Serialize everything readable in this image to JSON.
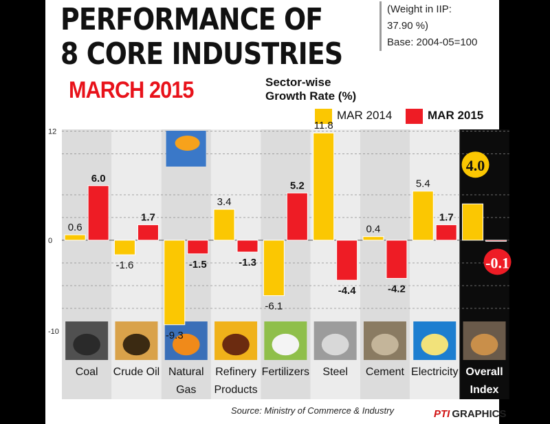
{
  "header": {
    "title_line1": "PERFORMANCE OF",
    "title_line2": "8 CORE INDUSTRIES",
    "month": "MARCH 2015"
  },
  "note": {
    "line1": "(Weight in IIP:",
    "line2": "37.90 %)",
    "line3": "Base: 2004-05=100"
  },
  "source": "Source: Ministry of Commerce & Industry",
  "footer": {
    "logo_text": "PTI",
    "label": "GRAPHICS"
  },
  "colors": {
    "mar2014": "#fbc702",
    "mar2015": "#ee1c25",
    "panel": "#dcdcdc",
    "overall_panel": "#0c0c0c"
  },
  "chart_data": {
    "type": "bar",
    "title": "Sector-wise Growth Rate (%)",
    "title_lines": [
      "Sector-wise",
      "Growth Rate (%)"
    ],
    "categories": [
      "Coal",
      "Crude Oil",
      "Natural Gas",
      "Refinery Products",
      "Fertilizers",
      "Steel",
      "Cement",
      "Electricity",
      "Overall Index"
    ],
    "category_labels": [
      [
        "Coal"
      ],
      [
        "Crude Oil"
      ],
      [
        "Natural",
        "Gas"
      ],
      [
        "Refinery",
        "Products"
      ],
      [
        "Fertilizers"
      ],
      [
        "Steel"
      ],
      [
        "Cement"
      ],
      [
        "Electricity"
      ],
      [
        "Overall",
        "Index"
      ]
    ],
    "series": [
      {
        "name": "MAR 2014",
        "values": [
          0.6,
          -1.6,
          -9.3,
          3.4,
          -6.1,
          11.8,
          0.4,
          5.4,
          4.0
        ],
        "labels": [
          "0.6",
          "-1.6",
          "-9.3",
          "3.4",
          "-6.1",
          "11.8",
          "0.4",
          "5.4",
          "4.0"
        ]
      },
      {
        "name": "MAR 2015",
        "values": [
          6.0,
          1.7,
          -1.5,
          -1.3,
          5.2,
          -4.4,
          -4.2,
          1.7,
          -0.1
        ],
        "labels": [
          "6.0",
          "1.7",
          "-1.5",
          "-1.3",
          "5.2",
          "-4.4",
          "-4.2",
          "1.7",
          "-0.1"
        ]
      }
    ],
    "yticks": [
      12,
      0,
      -10
    ],
    "ylim": [
      -10,
      12
    ],
    "grid": true,
    "legend": "top-right",
    "icons": [
      "coal-pile-icon",
      "oil-pump-icon",
      "gas-flare-icon",
      "fuel-nozzle-icon",
      "fertilizer-sack-icon",
      "steel-rods-icon",
      "cement-work-icon",
      "light-bulb-icon",
      "industry-skyline-icon"
    ]
  }
}
